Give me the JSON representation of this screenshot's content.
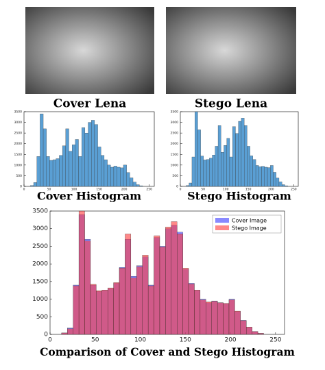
{
  "images": [
    {
      "caption": "Cover Lena"
    },
    {
      "caption": "Stego Lena"
    }
  ],
  "chart_data": [
    {
      "type": "histogram",
      "title": "Cover Histogram",
      "color": "#5a9fd4",
      "bins": [
        0,
        6.4,
        12.8,
        19.2,
        25.6,
        32,
        38.4,
        44.8,
        51.2,
        57.6,
        64,
        70.4,
        76.8,
        83.2,
        89.6,
        96,
        102.4,
        108.8,
        115.2,
        121.6,
        128,
        134.4,
        140.8,
        147.2,
        153.6,
        160,
        166.4,
        172.8,
        179.2,
        185.6,
        192,
        198.4,
        204.8,
        211.2,
        217.6,
        224,
        230.4,
        236.8,
        243.2,
        249.6,
        256
      ],
      "values": [
        0,
        0,
        40,
        180,
        1400,
        3400,
        2700,
        1400,
        1220,
        1250,
        1300,
        1450,
        1900,
        2700,
        1650,
        1950,
        2200,
        1400,
        2750,
        2500,
        3000,
        3100,
        2900,
        1850,
        1450,
        1250,
        1000,
        900,
        950,
        900,
        870,
        1000,
        650,
        400,
        200,
        80,
        30,
        0,
        0,
        0
      ],
      "xlim": [
        0,
        260
      ],
      "xticks": [
        0,
        50,
        100,
        150,
        200,
        250
      ],
      "ylim": [
        0,
        3500
      ],
      "yticks": [
        0,
        500,
        1000,
        1500,
        2000,
        2500,
        3000,
        3500
      ]
    },
    {
      "type": "histogram",
      "title": "Stego Histogram",
      "color": "#5a9fd4",
      "bins": [
        0,
        6.4,
        12.8,
        19.2,
        25.6,
        32,
        38.4,
        44.8,
        51.2,
        57.6,
        64,
        70.4,
        76.8,
        83.2,
        89.6,
        96,
        102.4,
        108.8,
        115.2,
        121.6,
        128,
        134.4,
        140.8,
        147.2,
        153.6,
        160,
        166.4,
        172.8,
        179.2,
        185.6,
        192,
        198.4,
        204.8,
        211.2,
        217.6,
        224,
        230.4,
        236.8,
        243.2,
        249.6,
        256
      ],
      "values": [
        0,
        0,
        40,
        160,
        1380,
        3500,
        2650,
        1420,
        1240,
        1260,
        1320,
        1470,
        1880,
        2850,
        1600,
        1920,
        2250,
        1380,
        2800,
        2480,
        3050,
        3200,
        2850,
        1880,
        1430,
        1260,
        980,
        920,
        940,
        900,
        880,
        980,
        660,
        390,
        210,
        80,
        30,
        0,
        0,
        0
      ],
      "xlim": [
        0,
        260
      ],
      "xticks": [
        0,
        50,
        100,
        150,
        200,
        250
      ],
      "ylim": [
        0,
        3500
      ],
      "yticks": [
        0,
        500,
        1000,
        1500,
        2000,
        2500,
        3000,
        3500
      ]
    },
    {
      "type": "histogram",
      "title": "Comparison of Cover and Stego Histogram",
      "legend": "upper right",
      "bins": [
        0,
        6.4,
        12.8,
        19.2,
        25.6,
        32,
        38.4,
        44.8,
        51.2,
        57.6,
        64,
        70.4,
        76.8,
        83.2,
        89.6,
        96,
        102.4,
        108.8,
        115.2,
        121.6,
        128,
        134.4,
        140.8,
        147.2,
        153.6,
        160,
        166.4,
        172.8,
        179.2,
        185.6,
        192,
        198.4,
        204.8,
        211.2,
        217.6,
        224,
        230.4,
        236.8,
        243.2,
        249.6,
        256
      ],
      "series": [
        {
          "name": "Cover Image",
          "color": "#3b3bff",
          "values": [
            0,
            0,
            40,
            180,
            1400,
            3400,
            2700,
            1400,
            1220,
            1250,
            1300,
            1450,
            1900,
            2700,
            1650,
            1950,
            2200,
            1400,
            2750,
            2500,
            3000,
            3100,
            2900,
            1850,
            1450,
            1250,
            1000,
            900,
            950,
            900,
            870,
            1000,
            650,
            400,
            200,
            80,
            30,
            0,
            0,
            0
          ]
        },
        {
          "name": "Stego Image",
          "color": "#ff3b3b",
          "values": [
            0,
            0,
            40,
            160,
            1380,
            3500,
            2650,
            1420,
            1240,
            1260,
            1320,
            1470,
            1880,
            2850,
            1600,
            1920,
            2250,
            1380,
            2800,
            2480,
            3050,
            3200,
            2850,
            1880,
            1430,
            1260,
            980,
            920,
            940,
            900,
            880,
            980,
            660,
            390,
            210,
            80,
            30,
            0,
            0,
            0
          ]
        }
      ],
      "xlim": [
        0,
        260
      ],
      "xticks": [
        0,
        50,
        100,
        150,
        200,
        250
      ],
      "ylim": [
        0,
        3500
      ],
      "yticks": [
        0,
        500,
        1000,
        1500,
        2000,
        2500,
        3000,
        3500
      ]
    }
  ]
}
